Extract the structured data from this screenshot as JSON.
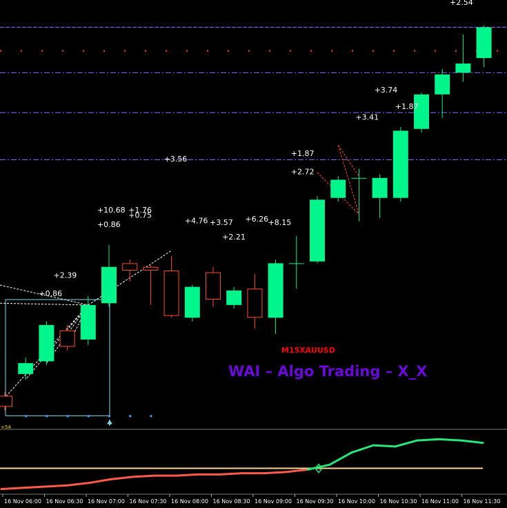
{
  "chart_data": {
    "type": "candlestick",
    "symbol_label": "M15XAUUSD",
    "watermark": "WAI – Algo Trading – X_X",
    "top_price_label": "+2.54",
    "lower_edge_label": "+54",
    "colors": {
      "bull": "#00f58a",
      "bear": "#ff4a2e",
      "osc_low": "#ff5a4a",
      "osc_high": "#27e67a",
      "signal_line": "#ffd49a",
      "level_lines": "#8c6cff",
      "box": "#7fd8e8"
    },
    "x_ticks": [
      "16 Nov 06:00",
      "16 Nov 06:30",
      "16 Nov 07:00",
      "16 Nov 07:30",
      "16 Nov 08:00",
      "16 Nov 08:30",
      "16 Nov 09:00",
      "16 Nov 09:30",
      "16 Nov 10:00",
      "16 Nov 10:30",
      "16 Nov 11:00",
      "16 Nov 11:30"
    ],
    "candles": [
      {
        "o": 67,
        "c": 61,
        "h": 69,
        "l": 59
      },
      {
        "o": 79,
        "c": 85,
        "h": 88,
        "l": 76
      },
      {
        "o": 86,
        "c": 106,
        "h": 108,
        "l": 84
      },
      {
        "o": 103,
        "c": 94,
        "h": 106,
        "l": 92
      },
      {
        "o": 98,
        "c": 117,
        "h": 122,
        "l": 95
      },
      {
        "o": 118,
        "c": 138,
        "h": 150,
        "l": 116
      },
      {
        "o": 140,
        "c": 136,
        "h": 142,
        "l": 130
      },
      {
        "o": 138,
        "c": 136,
        "h": 139,
        "l": 117
      },
      {
        "o": 136,
        "c": 111,
        "h": 144,
        "l": 110
      },
      {
        "o": 110,
        "c": 127,
        "h": 128,
        "l": 108
      },
      {
        "o": 135,
        "c": 120,
        "h": 138,
        "l": 116
      },
      {
        "o": 117,
        "c": 125,
        "h": 127,
        "l": 115
      },
      {
        "o": 126,
        "c": 110,
        "h": 134,
        "l": 104
      },
      {
        "o": 110,
        "c": 140,
        "h": 142,
        "l": 101
      },
      {
        "o": 140,
        "c": 140,
        "h": 155,
        "l": 126
      },
      {
        "o": 141,
        "c": 175,
        "h": 177,
        "l": 140
      },
      {
        "o": 176,
        "c": 186,
        "h": 188,
        "l": 174
      },
      {
        "o": 187,
        "c": 187,
        "h": 192,
        "l": 163
      },
      {
        "o": 176,
        "c": 187,
        "h": 189,
        "l": 165
      },
      {
        "o": 176,
        "c": 213,
        "h": 215,
        "l": 174
      },
      {
        "o": 214,
        "c": 233,
        "h": 234,
        "l": 212
      },
      {
        "o": 233,
        "c": 244,
        "h": 247,
        "l": 220
      },
      {
        "o": 245,
        "c": 250,
        "h": 266,
        "l": 240
      },
      {
        "o": 253,
        "c": 270,
        "h": 271,
        "l": 248
      }
    ],
    "levels": [
      270,
      245,
      223,
      197
    ],
    "dotted_level": 257,
    "annotations": [
      {
        "text": "+10.68",
        "i": 4.7,
        "p": 168
      },
      {
        "text": "+0.86",
        "i": 4.7,
        "p": 160
      },
      {
        "text": "+1.76",
        "i": 6.2,
        "p": 168
      },
      {
        "text": "+0.75",
        "i": 6.2,
        "p": 165
      },
      {
        "text": "+3.56",
        "i": 7.9,
        "p": 196
      },
      {
        "text": "+4.76",
        "i": 8.9,
        "p": 162
      },
      {
        "text": "+3.57",
        "i": 10.1,
        "p": 161
      },
      {
        "text": "+2.21",
        "i": 10.7,
        "p": 153
      },
      {
        "text": "+6.26",
        "i": 11.8,
        "p": 163
      },
      {
        "text": "+8.15",
        "i": 12.9,
        "p": 161
      },
      {
        "text": "+2.39",
        "i": 2.6,
        "p": 132
      },
      {
        "text": "+0.86",
        "i": 1.9,
        "p": 122
      },
      {
        "text": "+1.87",
        "i": 14.0,
        "p": 199
      },
      {
        "text": "+2.72",
        "i": 14.0,
        "p": 189
      },
      {
        "text": "+3.41",
        "i": 17.1,
        "p": 219
      },
      {
        "text": "+3.74",
        "i": 18.0,
        "p": 234
      },
      {
        "text": "+1.87",
        "i": 19.0,
        "p": 225
      }
    ],
    "oscillator": [
      2,
      3,
      4,
      5,
      7,
      10,
      12,
      13,
      13,
      14,
      14,
      15,
      15,
      16,
      18,
      22,
      32,
      38,
      37,
      42,
      43,
      42,
      40
    ],
    "oscillator_signal": 19,
    "oscillator_range": [
      0,
      50
    ],
    "price_range": [
      55,
      285
    ]
  }
}
